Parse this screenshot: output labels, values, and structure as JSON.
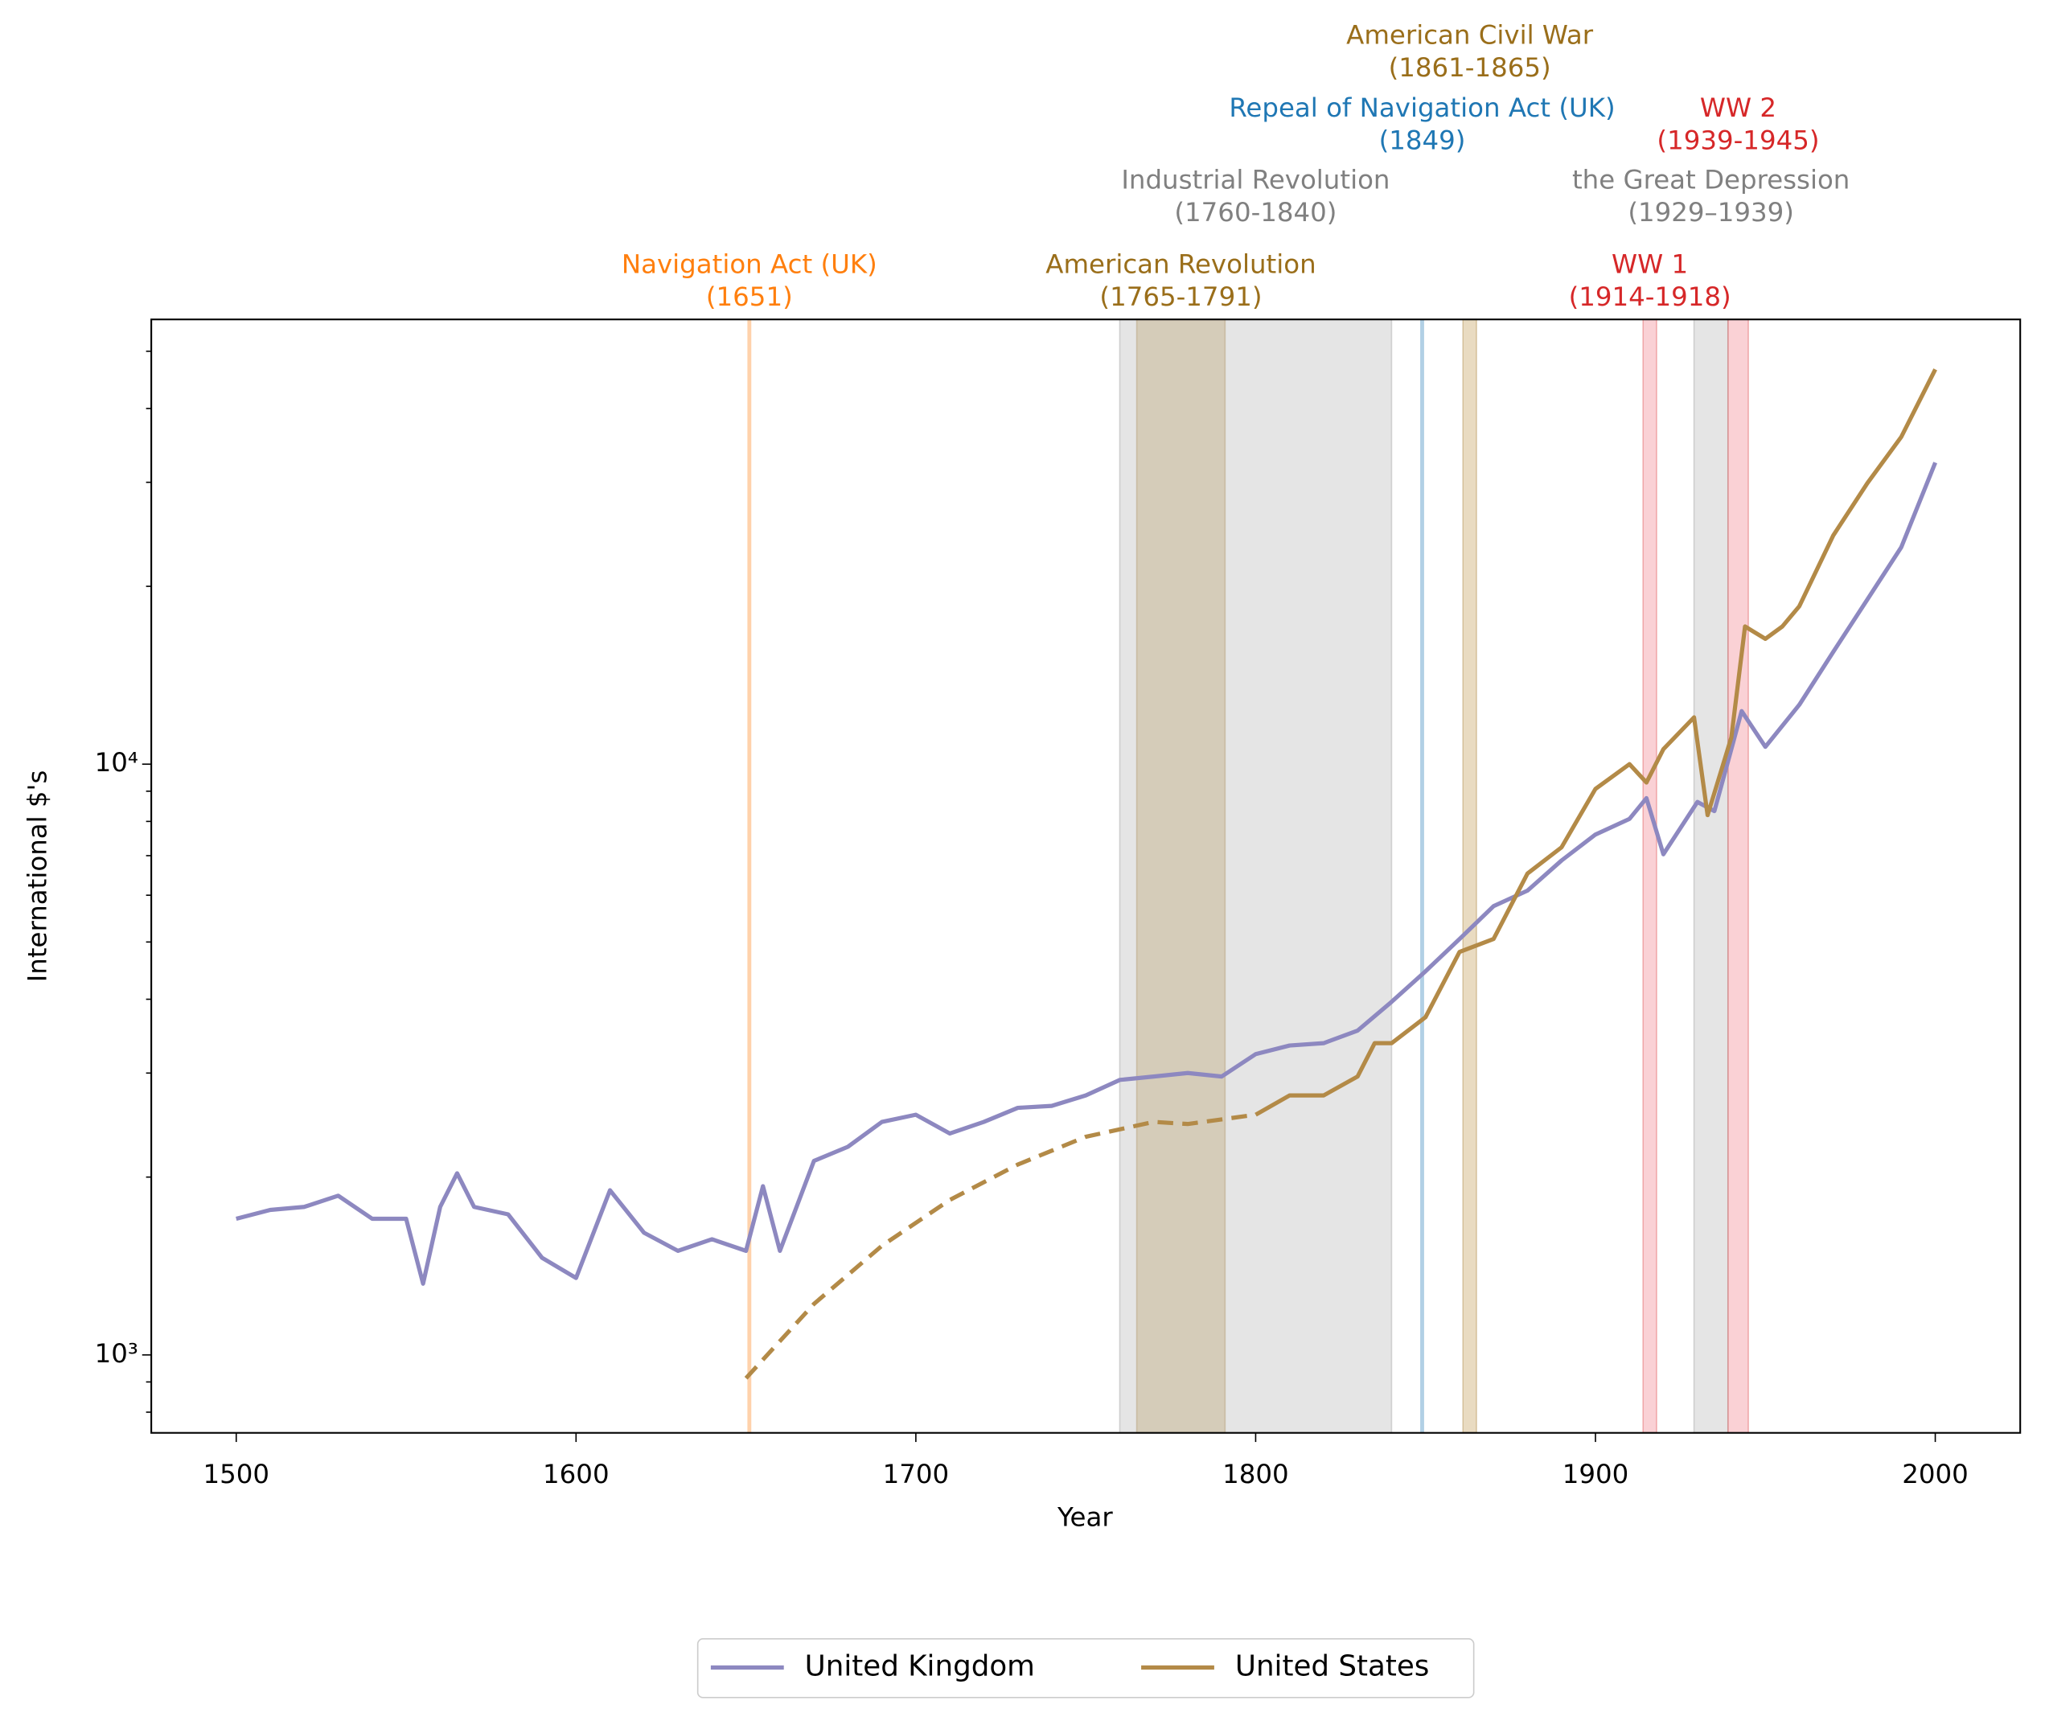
{
  "chart_data": {
    "type": "line",
    "x_label": "Year",
    "y_label": "International $'s",
    "xlim": [
      1475,
      2025
    ],
    "xticks": [
      1500,
      1600,
      1700,
      1800,
      1900,
      2000
    ],
    "ylim": [
      738,
      56600
    ],
    "yscale": "log",
    "yticks": [
      {
        "value": 1000,
        "label": "10³"
      },
      {
        "value": 10000,
        "label": "10⁴"
      }
    ],
    "yminorticks": [
      800,
      900,
      2000,
      3000,
      4000,
      5000,
      6000,
      7000,
      8000,
      9000,
      20000,
      30000,
      40000,
      50000
    ],
    "legend": "bottom",
    "series": [
      {
        "name": "United Kingdom",
        "color": "#8d88c0",
        "linestyle": "solid",
        "x": [
          1500,
          1510,
          1520,
          1530,
          1540,
          1550,
          1555,
          1560,
          1565,
          1570,
          1580,
          1590,
          1600,
          1610,
          1620,
          1630,
          1640,
          1650,
          1655,
          1660,
          1670,
          1680,
          1690,
          1700,
          1710,
          1720,
          1730,
          1740,
          1750,
          1760,
          1770,
          1780,
          1790,
          1800,
          1810,
          1820,
          1830,
          1840,
          1850,
          1860,
          1870,
          1880,
          1890,
          1900,
          1910,
          1915,
          1920,
          1930,
          1935,
          1940,
          1943,
          1950,
          1960,
          1970,
          1980,
          1990,
          2000
        ],
        "values": [
          1700,
          1760,
          1780,
          1860,
          1700,
          1700,
          1320,
          1780,
          2030,
          1780,
          1730,
          1460,
          1350,
          1900,
          1610,
          1500,
          1570,
          1500,
          1930,
          1500,
          2130,
          2250,
          2480,
          2550,
          2370,
          2480,
          2620,
          2640,
          2750,
          2920,
          2960,
          3000,
          2960,
          3230,
          3340,
          3370,
          3540,
          3960,
          4460,
          5060,
          5750,
          6110,
          6870,
          7600,
          8080,
          8760,
          7040,
          8630,
          8330,
          10600,
          12300,
          10700,
          12600,
          15500,
          19000,
          23300,
          32400
        ]
      },
      {
        "color": "#b38a47",
        "linestyle": "dashed",
        "x": [
          1650,
          1670,
          1690,
          1710,
          1730,
          1750,
          1770,
          1780,
          1800
        ],
        "values": [
          913,
          1220,
          1530,
          1830,
          2100,
          2340,
          2480,
          2460,
          2550
        ]
      },
      {
        "name": "United States",
        "color": "#b38a47",
        "linestyle": "solid",
        "x": [
          1800,
          1810,
          1820,
          1830,
          1835,
          1840,
          1850,
          1860,
          1870,
          1880,
          1890,
          1900,
          1910,
          1915,
          1920,
          1929,
          1933,
          1940,
          1944,
          1950,
          1955,
          1960,
          1970,
          1980,
          1990,
          2000
        ],
        "values": [
          2550,
          2750,
          2750,
          2960,
          3370,
          3370,
          3730,
          4810,
          5060,
          6530,
          7230,
          9080,
          10000,
          9310,
          10600,
          12000,
          8200,
          11100,
          17100,
          16300,
          17100,
          18500,
          24400,
          29900,
          35800,
          46600
        ]
      }
    ],
    "events": [
      {
        "label": "Navigation Act (UK)",
        "period": "(1651)",
        "start": 1651,
        "color": "#ff7f0e"
      },
      {
        "label": "American Revolution",
        "period": "(1765-1791)",
        "start": 1765,
        "end": 1791,
        "color": "#9a6e1a"
      },
      {
        "label": "Industrial Revolution",
        "period": "(1760-1840)",
        "start": 1760,
        "end": 1840,
        "color": "#808080"
      },
      {
        "label": "Repeal of Navigation Act (UK)",
        "period": "(1849)",
        "start": 1849,
        "color": "#1f77b4"
      },
      {
        "label": "American Civil War",
        "period": "(1861-1865)",
        "start": 1861,
        "end": 1865,
        "color": "#9a6e1a"
      },
      {
        "label": "WW 1",
        "period": "(1914-1918)",
        "start": 1914,
        "end": 1918,
        "color": "#d62728"
      },
      {
        "label": "the Great Depression",
        "period": "(1929–1939)",
        "start": 1929,
        "end": 1939,
        "color": "#808080"
      },
      {
        "label": "WW 2",
        "period": "(1939-1945)",
        "start": 1939,
        "end": 1945,
        "color": "#d62728"
      }
    ]
  }
}
